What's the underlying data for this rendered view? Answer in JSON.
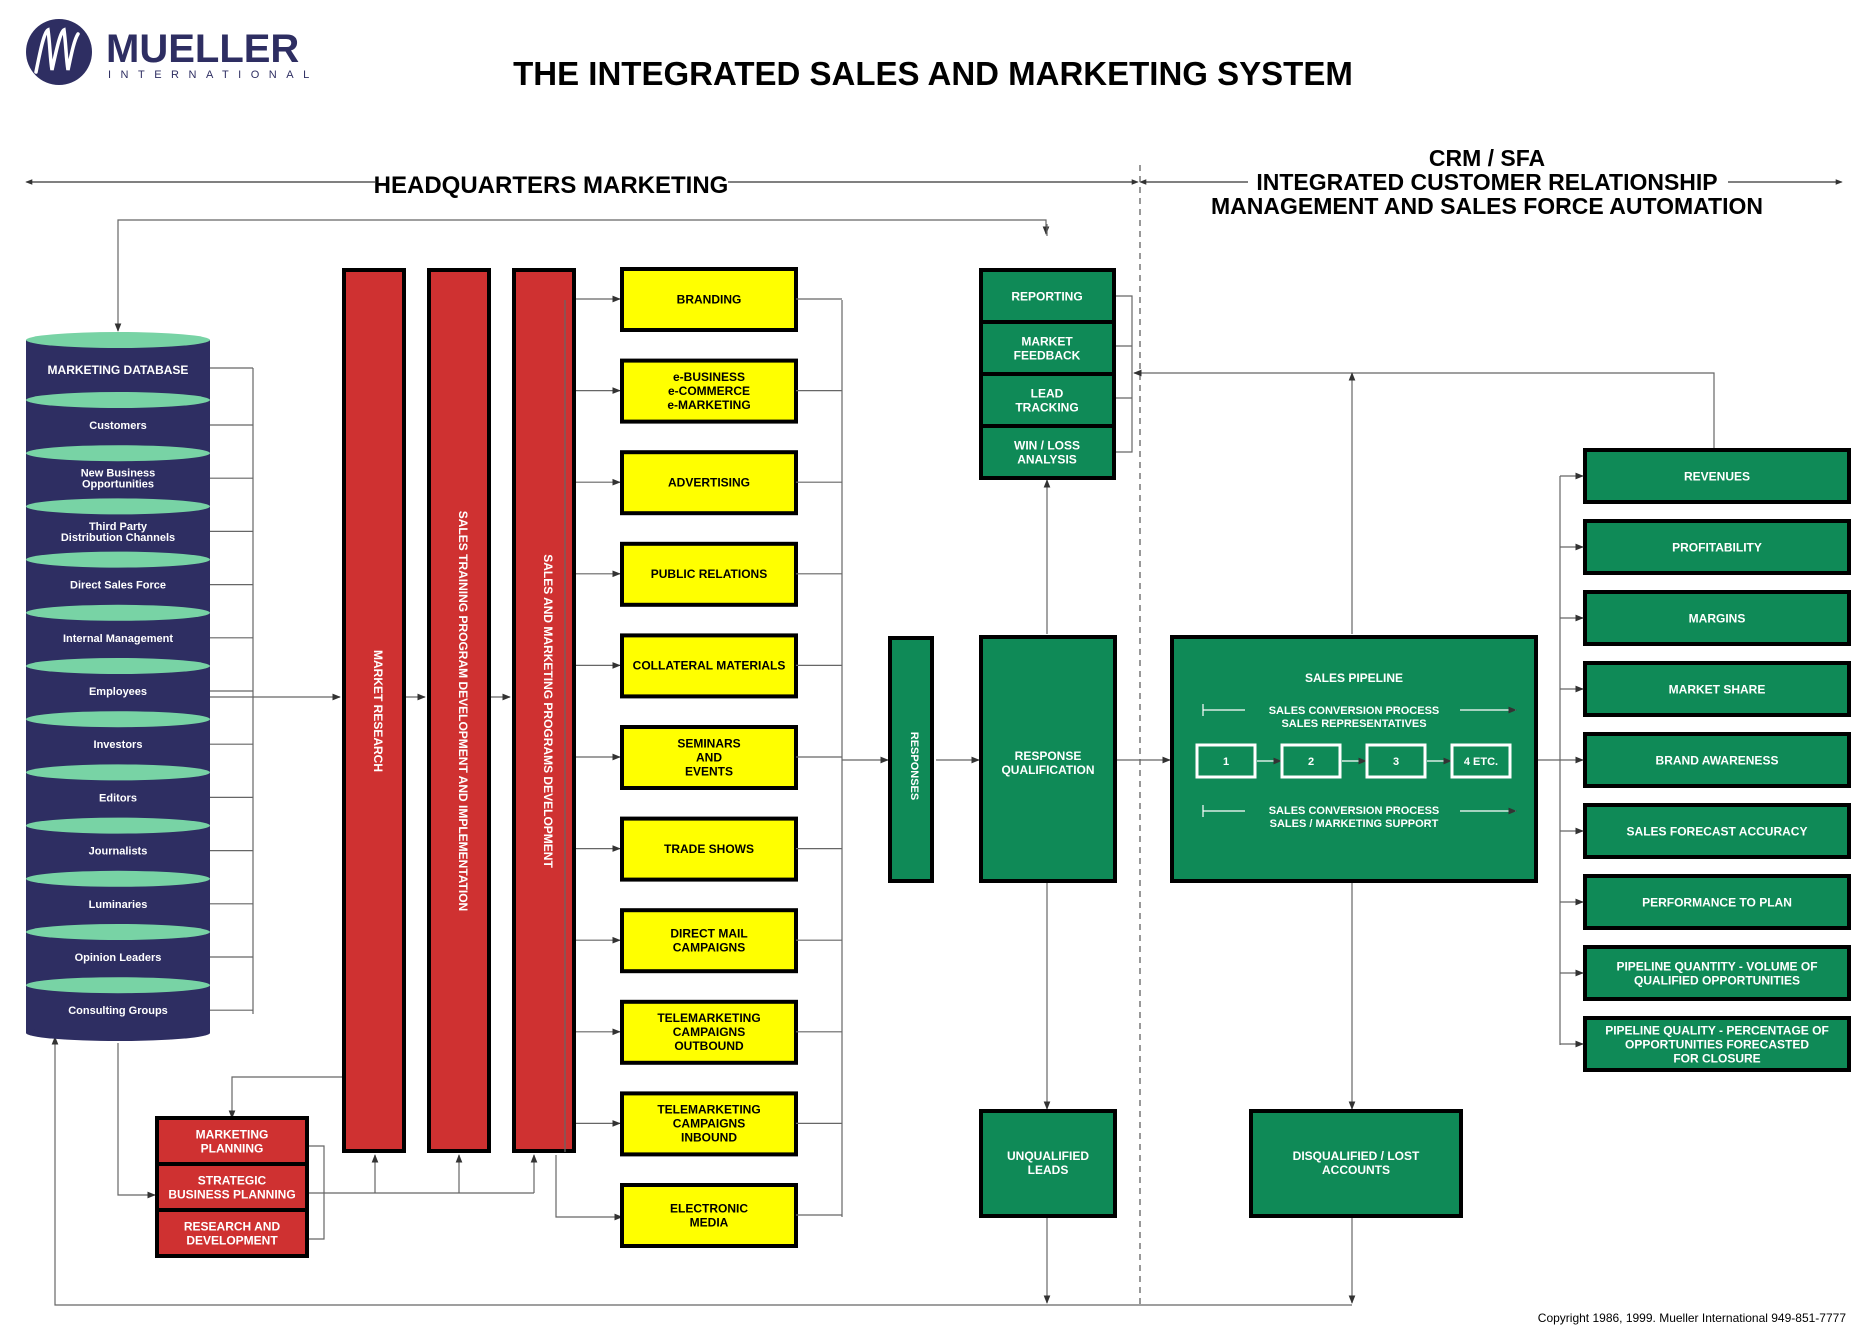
{
  "logo": {
    "name": "MUELLER",
    "sub": "INTERNATIONAL"
  },
  "title": "THE INTEGRATED SALES AND MARKETING SYSTEM",
  "headers": {
    "hq": "HEADQUARTERS MARKETING",
    "crm_line1": "CRM / SFA",
    "crm_line2": "INTEGRATED CUSTOMER RELATIONSHIP",
    "crm_line3": "MANAGEMENT AND SALES FORCE AUTOMATION"
  },
  "database": {
    "title": "MARKETING DATABASE",
    "items": [
      [
        "Customers"
      ],
      [
        "New Business",
        "Opportunities"
      ],
      [
        "Third Party",
        "Distribution Channels"
      ],
      [
        "Direct Sales Force"
      ],
      [
        "Internal Management"
      ],
      [
        "Employees"
      ],
      [
        "Investors"
      ],
      [
        "Editors"
      ],
      [
        "Journalists"
      ],
      [
        "Luminaries"
      ],
      [
        "Opinion Leaders"
      ],
      [
        "Consulting Groups"
      ]
    ]
  },
  "columns": {
    "market_research": "MARKET RESEARCH",
    "training": "SALES TRAINING PROGRAM DEVELOPMENT AND IMPLEMENTATION",
    "programs": "SALES AND MARKETING PROGRAMS DEVELOPMENT"
  },
  "planning": [
    [
      "MARKETING",
      "PLANNING"
    ],
    [
      "STRATEGIC",
      "BUSINESS PLANNING"
    ],
    [
      "RESEARCH AND",
      "DEVELOPMENT"
    ]
  ],
  "programs": [
    [
      "BRANDING"
    ],
    [
      "e-BUSINESS",
      "e-COMMERCE",
      "e-MARKETING"
    ],
    [
      "ADVERTISING"
    ],
    [
      "PUBLIC RELATIONS"
    ],
    [
      "COLLATERAL MATERIALS"
    ],
    [
      "SEMINARS",
      "AND",
      "EVENTS"
    ],
    [
      "TRADE SHOWS"
    ],
    [
      "DIRECT MAIL",
      "CAMPAIGNS"
    ],
    [
      "TELEMARKETING",
      "CAMPAIGNS",
      "OUTBOUND"
    ],
    [
      "TELEMARKETING",
      "CAMPAIGNS",
      "INBOUND"
    ],
    [
      "ELECTRONIC",
      "MEDIA"
    ]
  ],
  "responses": "RESPONSES",
  "reporting": [
    [
      "REPORTING"
    ],
    [
      "MARKET",
      "FEEDBACK"
    ],
    [
      "LEAD",
      "TRACKING"
    ],
    [
      "WIN / LOSS",
      "ANALYSIS"
    ]
  ],
  "qualification": [
    "RESPONSE",
    "QUALIFICATION"
  ],
  "unqualified": [
    "UNQUALIFIED",
    "LEADS"
  ],
  "disqualified": [
    "DISQUALIFIED / LOST",
    "ACCOUNTS"
  ],
  "pipeline": {
    "title": "SALES PIPELINE",
    "top_label": [
      "SALES CONVERSION PROCESS",
      "SALES REPRESENTATIVES"
    ],
    "bottom_label": [
      "SALES CONVERSION PROCESS",
      "SALES / MARKETING SUPPORT"
    ],
    "steps": [
      "1",
      "2",
      "3",
      "4 ETC."
    ]
  },
  "metrics": [
    [
      "REVENUES"
    ],
    [
      "PROFITABILITY"
    ],
    [
      "MARGINS"
    ],
    [
      "MARKET SHARE"
    ],
    [
      "BRAND AWARENESS"
    ],
    [
      "SALES FORECAST ACCURACY"
    ],
    [
      "PERFORMANCE TO PLAN"
    ],
    [
      "PIPELINE QUANTITY - VOLUME OF",
      "QUALIFIED OPPORTUNITIES"
    ],
    [
      "PIPELINE QUALITY - PERCENTAGE OF",
      "OPPORTUNITIES FORECASTED",
      "FOR CLOSURE"
    ]
  ],
  "copyright": "Copyright 1986, 1999. Mueller International   949-851-7777",
  "colors": {
    "navy": "#2e2e62",
    "teal": "#78d3a5",
    "green": "#0f8a57",
    "red": "#cf3131",
    "yellow": "#ffff00"
  }
}
